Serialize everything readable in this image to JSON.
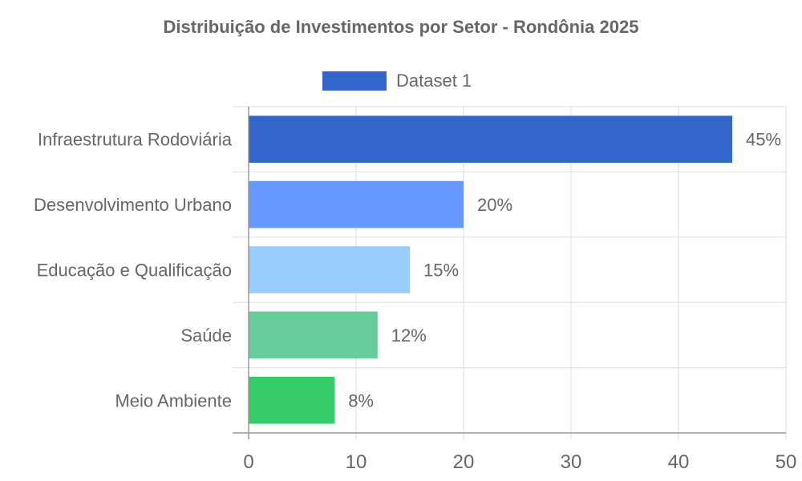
{
  "chart_data": {
    "type": "bar",
    "orientation": "horizontal",
    "title": "Distribuição de Investimentos por Setor - Rondônia 2025",
    "categories": [
      "Infraestrutura Rodoviária",
      "Desenvolvimento Urbano",
      "Educação e Qualificação",
      "Saúde",
      "Meio Ambiente"
    ],
    "series": [
      {
        "name": "Dataset 1",
        "values": [
          45,
          20,
          15,
          12,
          8
        ]
      }
    ],
    "data_labels": [
      "45%",
      "20%",
      "15%",
      "12%",
      "8%"
    ],
    "bar_colors": [
      "#3366cc",
      "#6699ff",
      "#99ccff",
      "#66cc99",
      "#33cc66"
    ],
    "legend_color": "#3366cc",
    "xlim": [
      0,
      50
    ],
    "x_ticks": [
      "0",
      "10",
      "20",
      "30",
      "40",
      "50"
    ],
    "grid": true,
    "legend_position": "top"
  }
}
